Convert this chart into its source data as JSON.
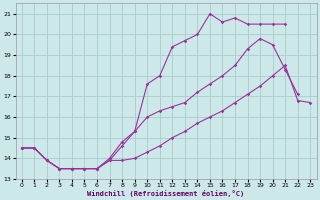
{
  "xlabel": "Windchill (Refroidissement éolien,°C)",
  "bg_color": "#cce8e8",
  "grid_color": "#aacccc",
  "line_color": "#993399",
  "xlim": [
    -0.5,
    23.5
  ],
  "ylim": [
    13,
    21.5
  ],
  "yticks": [
    13,
    14,
    15,
    16,
    17,
    18,
    19,
    20,
    21
  ],
  "xticks": [
    0,
    1,
    2,
    3,
    4,
    5,
    6,
    7,
    8,
    9,
    10,
    11,
    12,
    13,
    14,
    15,
    16,
    17,
    18,
    19,
    20,
    21,
    22,
    23
  ],
  "series": [
    {
      "x": [
        0,
        1,
        2,
        3,
        4,
        5,
        6,
        7,
        8,
        9,
        10,
        11,
        12,
        13,
        14,
        15,
        16,
        17,
        18,
        19,
        20,
        21
      ],
      "y": [
        14.5,
        14.5,
        13.9,
        13.5,
        13.5,
        13.5,
        13.5,
        14.0,
        14.8,
        15.3,
        17.6,
        18.0,
        19.4,
        19.7,
        20.0,
        21.0,
        20.6,
        20.8,
        20.5,
        20.5,
        20.5,
        20.5
      ]
    },
    {
      "x": [
        0,
        1,
        2,
        3,
        4,
        5,
        6,
        7,
        8,
        9,
        10,
        11,
        12,
        13,
        14,
        15,
        16,
        17,
        18,
        19,
        20,
        21,
        22
      ],
      "y": [
        14.5,
        14.5,
        13.9,
        13.5,
        13.5,
        13.5,
        13.5,
        13.9,
        14.6,
        15.3,
        16.0,
        16.3,
        16.5,
        16.7,
        17.2,
        17.6,
        18.0,
        18.5,
        19.3,
        19.8,
        19.5,
        18.3,
        17.1
      ]
    },
    {
      "x": [
        0,
        1,
        2,
        3,
        4,
        5,
        6,
        7,
        8,
        9,
        10,
        11,
        12,
        13,
        14,
        15,
        16,
        17,
        18,
        19,
        20,
        21,
        22,
        23
      ],
      "y": [
        14.5,
        14.5,
        13.9,
        13.5,
        13.5,
        13.5,
        13.5,
        13.9,
        13.9,
        14.0,
        14.3,
        14.6,
        15.0,
        15.3,
        15.7,
        16.0,
        16.3,
        16.7,
        17.1,
        17.5,
        18.0,
        18.5,
        16.8,
        16.7
      ]
    }
  ]
}
